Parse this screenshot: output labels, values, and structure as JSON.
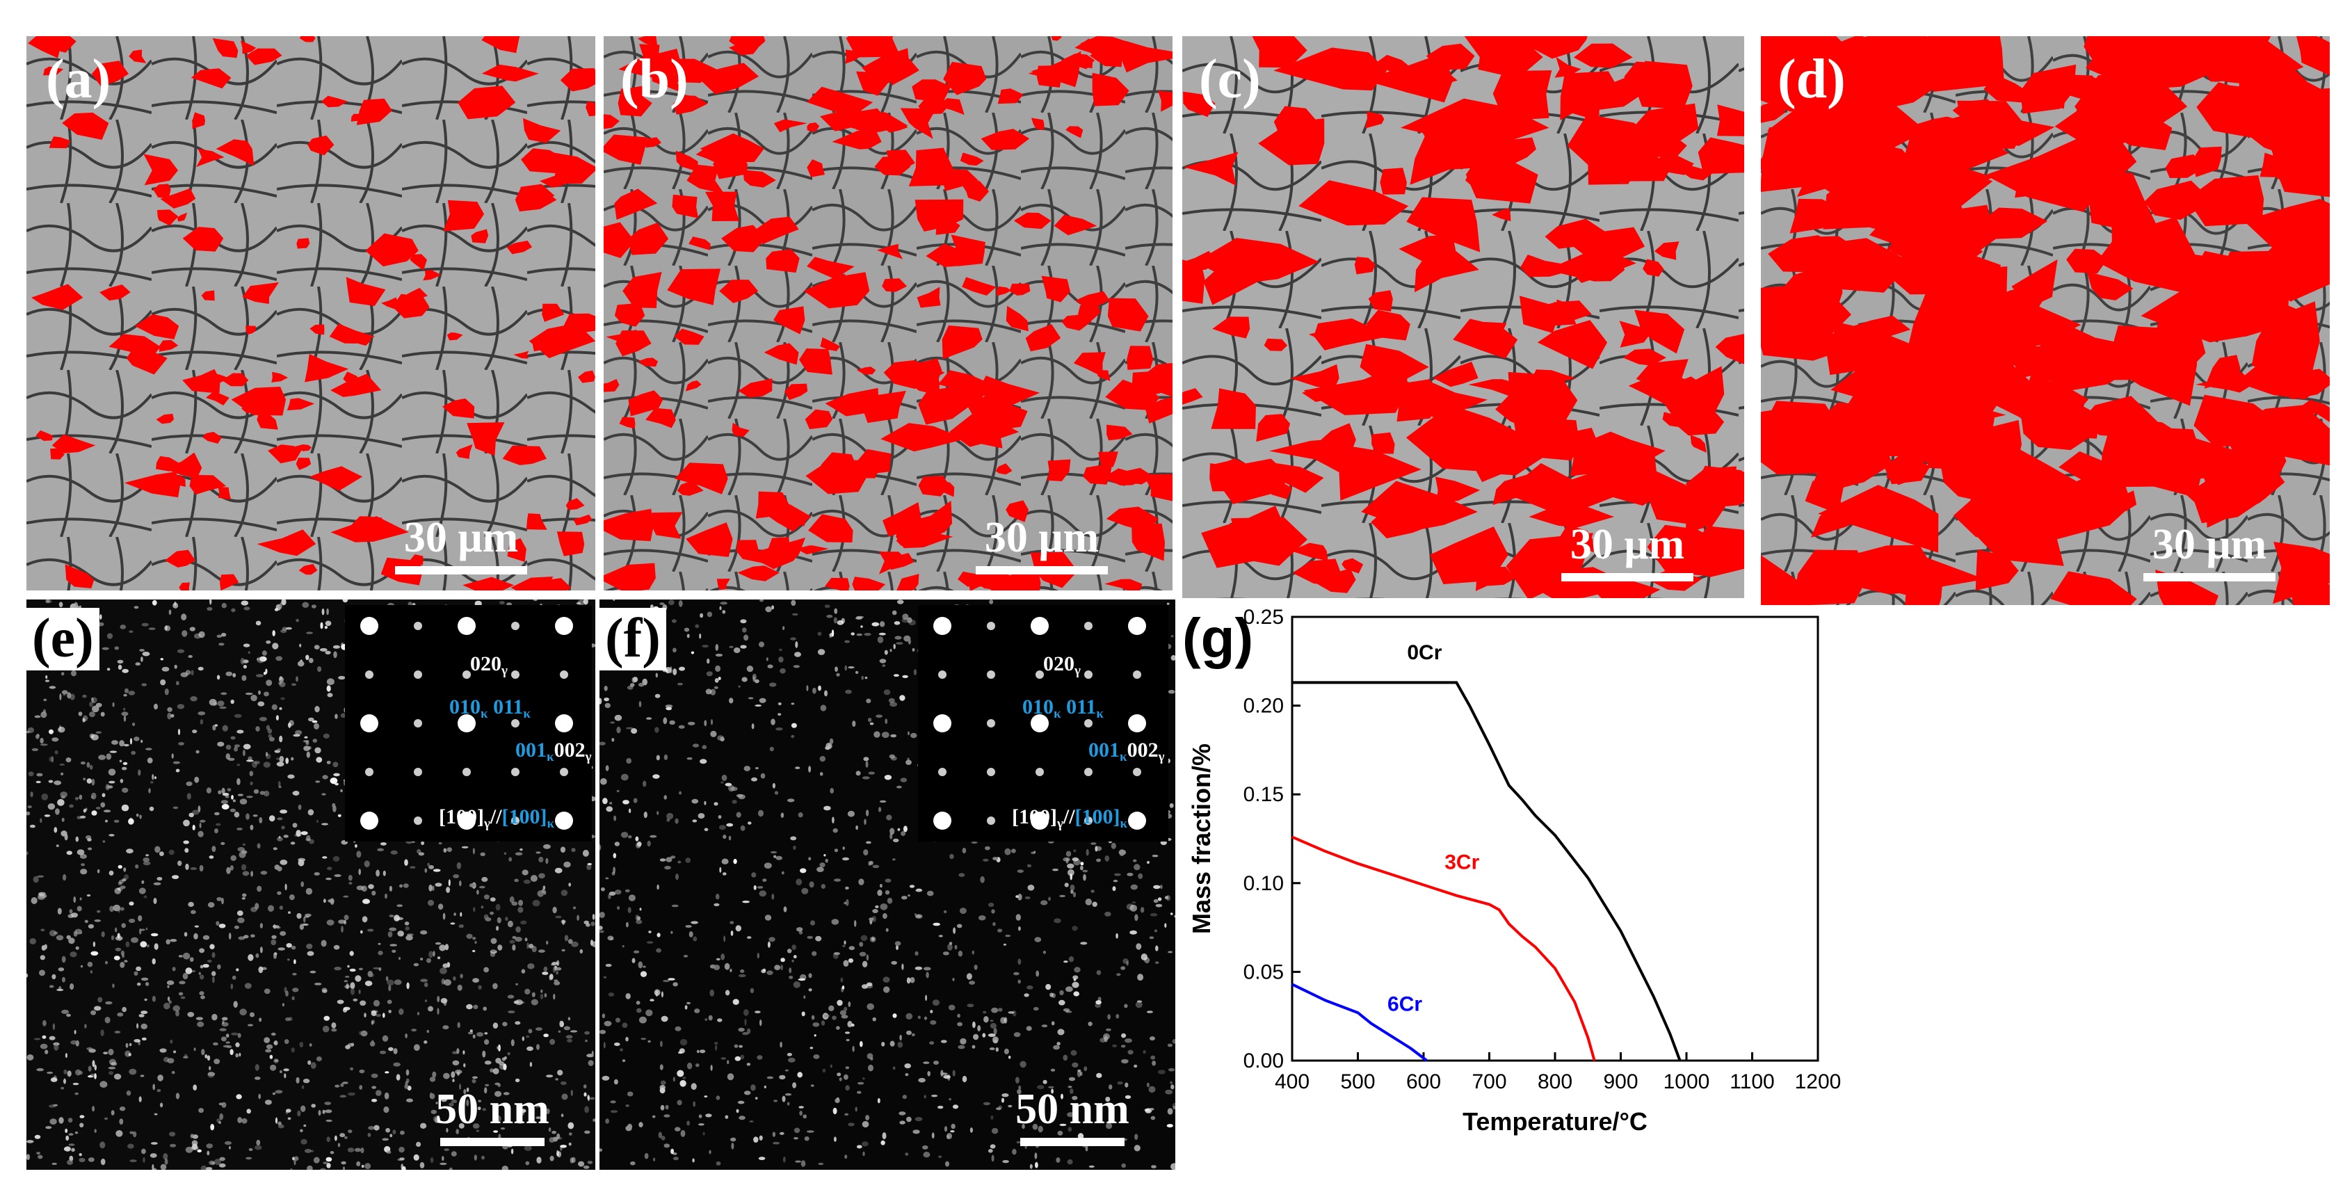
{
  "panels": {
    "a": {
      "label": "(a)",
      "scale": "30 μm"
    },
    "b": {
      "label": "(b)",
      "scale": "30 μm"
    },
    "c": {
      "label": "(c)",
      "scale": "30 μm"
    },
    "d": {
      "label": "(d)",
      "scale": "30 μm"
    },
    "e": {
      "label": "(e)",
      "scale": "50 nm"
    },
    "f": {
      "label": "(f)",
      "scale": "50 nm"
    },
    "g": {
      "label": "(g)"
    }
  },
  "saed": {
    "gamma_020": "020",
    "kappa_010": "010",
    "kappa_011": "011",
    "kappa_001": "001",
    "gamma_002": "002",
    "zone_gamma": "[100]",
    "zone_sep": "//",
    "zone_kappa": "[100]",
    "sub_gamma": "γ",
    "sub_kappa": "κ"
  },
  "colors": {
    "phase_overlay": "#ff0000",
    "kappa_index": "#1f9be0",
    "0Cr": "#000000",
    "3Cr": "#ff0000",
    "6Cr": "#0000ff"
  },
  "chart_data": {
    "type": "line",
    "xlabel": "Temperature/°C",
    "ylabel": "Mass fraction/%",
    "xlim": [
      400,
      1200
    ],
    "ylim": [
      0,
      0.25
    ],
    "xticks": [
      400,
      500,
      600,
      700,
      800,
      900,
      1000,
      1100,
      1200
    ],
    "yticks": [
      0.0,
      0.05,
      0.1,
      0.15,
      0.2,
      0.25
    ],
    "ytick_labels": [
      "0.00",
      "0.05",
      "0.10",
      "0.15",
      "0.20",
      "0.25"
    ],
    "series": [
      {
        "name": "0Cr",
        "color": "#000000",
        "x": [
          400,
          500,
          600,
          650,
          670,
          700,
          730,
          750,
          770,
          800,
          850,
          900,
          950,
          975,
          990
        ],
        "y": [
          0.213,
          0.213,
          0.213,
          0.213,
          0.2,
          0.178,
          0.155,
          0.147,
          0.138,
          0.127,
          0.103,
          0.073,
          0.036,
          0.015,
          0.0
        ]
      },
      {
        "name": "3Cr",
        "color": "#ff0000",
        "x": [
          400,
          450,
          500,
          550,
          600,
          650,
          700,
          715,
          730,
          750,
          770,
          800,
          830,
          850,
          860
        ],
        "y": [
          0.126,
          0.118,
          0.111,
          0.105,
          0.099,
          0.093,
          0.088,
          0.085,
          0.077,
          0.07,
          0.064,
          0.052,
          0.033,
          0.013,
          0.0
        ]
      },
      {
        "name": "6Cr",
        "color": "#0000ff",
        "x": [
          400,
          450,
          500,
          520,
          550,
          580,
          605
        ],
        "y": [
          0.043,
          0.034,
          0.027,
          0.021,
          0.014,
          0.007,
          0.0
        ]
      }
    ]
  }
}
